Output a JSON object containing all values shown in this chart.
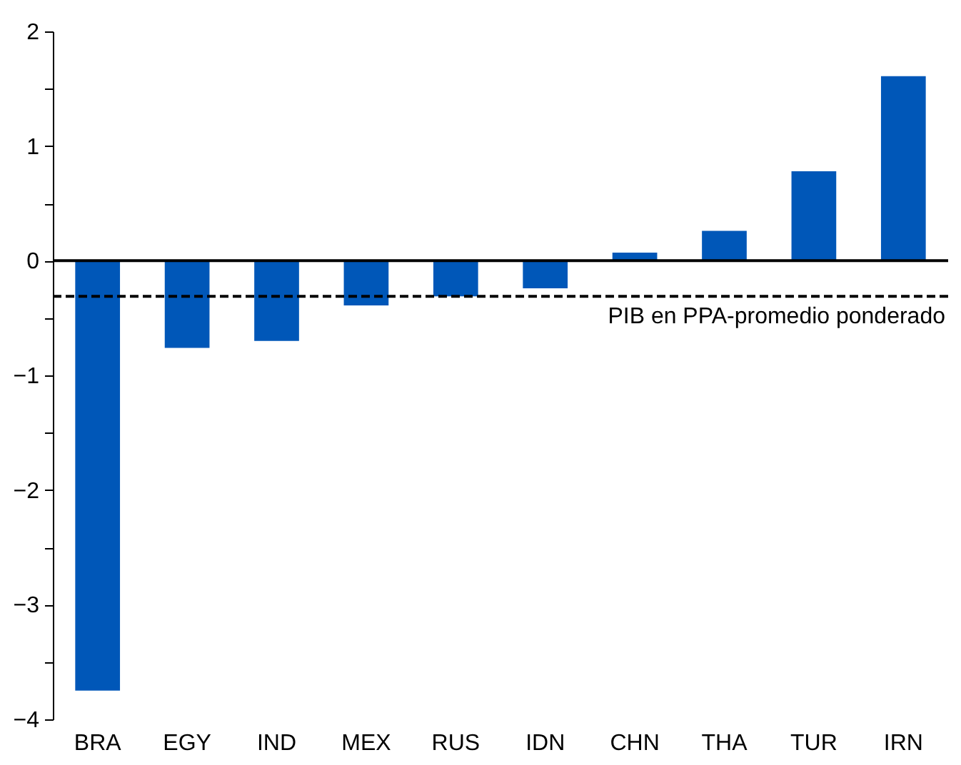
{
  "chart_data": {
    "type": "bar",
    "categories": [
      "BRA",
      "EGY",
      "IND",
      "MEX",
      "RUS",
      "IDN",
      "CHN",
      "THA",
      "TUR",
      "IRN"
    ],
    "values": [
      -3.75,
      -0.76,
      -0.7,
      -0.39,
      -0.31,
      -0.24,
      0.07,
      0.26,
      0.78,
      1.61
    ],
    "color": "#0057b8",
    "ylim": [
      -4,
      2
    ],
    "yticks": [
      -4,
      {
        "value": -3.5,
        "label": null
      },
      -3,
      {
        "value": -2.5,
        "label": null
      },
      -2,
      {
        "value": -1.5,
        "label": null
      },
      -1,
      {
        "value": -0.5,
        "label": null
      },
      0,
      {
        "value": 0.5,
        "label": null
      },
      1,
      {
        "value": 1.5,
        "label": null
      },
      2
    ],
    "ref_lines": [
      {
        "axis": "y",
        "value": -0.31,
        "label": "PIB en PPA-promedio ponderado",
        "color": "#000000",
        "line_style": "dashed"
      },
      {
        "axis": "y",
        "value": 0,
        "label": null,
        "color": "#000000",
        "line_style": "solid"
      }
    ]
  }
}
